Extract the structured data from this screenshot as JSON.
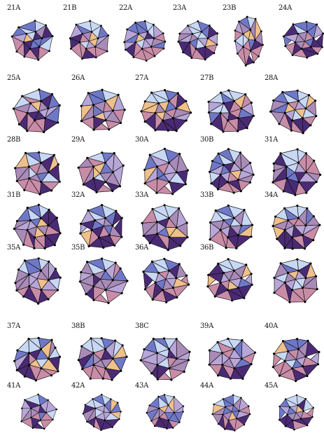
{
  "figure": {
    "labels": [
      [
        "21A",
        "21B",
        "22A",
        "23A",
        "23B",
        "24A"
      ],
      [
        "25A",
        "26A",
        "27A",
        "27B",
        "28A"
      ],
      [
        "28B",
        "29A",
        "30A",
        "30B",
        "31A"
      ],
      [
        "31B",
        "32A",
        "33A",
        "33B",
        "34A"
      ],
      [
        "35A",
        "35B",
        "36A",
        "36B",
        ""
      ],
      [
        "37A",
        "38B",
        "38C",
        "39A",
        "40A"
      ],
      [
        "41A",
        "42A",
        "43A",
        "44A",
        "45A"
      ]
    ]
  },
  "colors": {
    "light_blue": "#c8d8f4",
    "blue": "#6f78c8",
    "lavender": "#b8a6d8",
    "mauve": "#a98bb8",
    "rose": "#c98ca7",
    "dark_purple": "#4a2a74",
    "peach": "#f0c08a",
    "edge": "#111111",
    "vertex": "#000000"
  }
}
